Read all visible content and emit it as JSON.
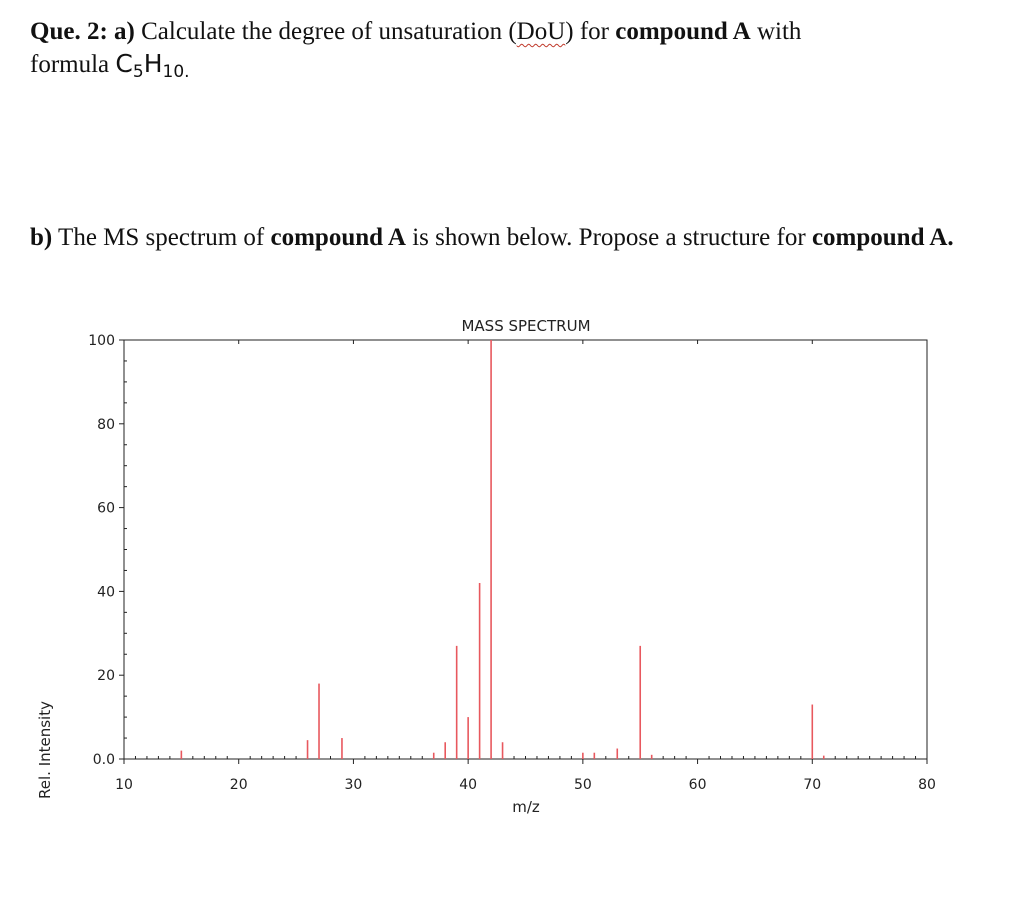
{
  "question_a": {
    "que_label": "Que. 2:",
    "part": "a)",
    "text_1": "Calculate the degree of unsaturation (",
    "dou": "DoU",
    "text_2": ") for",
    "compound": "compound A",
    "text_3": "with",
    "text_4": "formula",
    "formula_c": "C",
    "formula_c_sub": "5",
    "formula_h": "H",
    "formula_h_sub": "10.",
    "flagged_word_color": "#c0392b"
  },
  "question_b": {
    "part": "b)",
    "text_1": "The MS spectrum of",
    "compound": "compound A",
    "text_2": "is shown below. Propose a structure for",
    "compound_2": "compound A",
    "end": "."
  },
  "chart_data": {
    "type": "bar",
    "title": "MASS SPECTRUM",
    "xlabel": "m/z",
    "ylabel": "Rel. Intensity",
    "xlim": [
      10,
      80
    ],
    "ylim": [
      0,
      100
    ],
    "x_ticks": [
      10,
      20,
      30,
      40,
      50,
      60,
      70,
      80
    ],
    "y_ticks": [
      0,
      20,
      40,
      60,
      80,
      100
    ],
    "y_tick_labels": [
      "0.0",
      "20",
      "40",
      "60",
      "80",
      "100"
    ],
    "bar_color": "#e8585e",
    "grid": false,
    "peaks": [
      {
        "mz": 15,
        "intensity": 2
      },
      {
        "mz": 26,
        "intensity": 4.5
      },
      {
        "mz": 27,
        "intensity": 18
      },
      {
        "mz": 29,
        "intensity": 5
      },
      {
        "mz": 37,
        "intensity": 1.5
      },
      {
        "mz": 38,
        "intensity": 4
      },
      {
        "mz": 39,
        "intensity": 27
      },
      {
        "mz": 40,
        "intensity": 10
      },
      {
        "mz": 41,
        "intensity": 42
      },
      {
        "mz": 42,
        "intensity": 100
      },
      {
        "mz": 43,
        "intensity": 4
      },
      {
        "mz": 50,
        "intensity": 1.5
      },
      {
        "mz": 51,
        "intensity": 1.5
      },
      {
        "mz": 53,
        "intensity": 2.5
      },
      {
        "mz": 55,
        "intensity": 27
      },
      {
        "mz": 56,
        "intensity": 1
      },
      {
        "mz": 70,
        "intensity": 13
      },
      {
        "mz": 71,
        "intensity": 0.8
      }
    ]
  }
}
